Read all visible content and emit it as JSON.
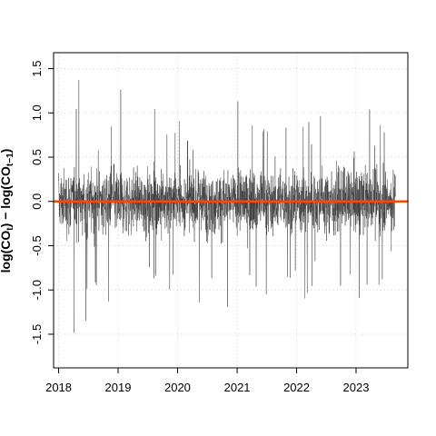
{
  "chart_data": {
    "type": "line",
    "title": "",
    "xlabel": "",
    "ylabel": {
      "prefix_1": "log(CO",
      "sub_1": "t",
      "mid": ") − log(CO",
      "sub_2": "t−1",
      "suffix": ")"
    },
    "x_range": [
      "2017-12-01",
      "2023-11-15"
    ],
    "ylim": [
      -1.88,
      1.68
    ],
    "grid": true,
    "x_ticks": [
      {
        "label": "2018",
        "date": "2018-01-01"
      },
      {
        "label": "2019",
        "date": "2019-01-01"
      },
      {
        "label": "2020",
        "date": "2020-01-01"
      },
      {
        "label": "2021",
        "date": "2021-01-01"
      },
      {
        "label": "2022",
        "date": "2022-01-01"
      },
      {
        "label": "2023",
        "date": "2023-01-01"
      }
    ],
    "y_ticks": [
      -1.5,
      -1.0,
      -0.5,
      0.0,
      0.5,
      1.0,
      1.5
    ],
    "y_tick_labels": [
      "-1.5",
      "-1.0",
      "-0.5",
      "0.0",
      "0.5",
      "1.0",
      "1.5"
    ],
    "series": [
      {
        "type": "line",
        "color": "#3c3c3c",
        "x_start": "2018-01-01",
        "x_end": "2023-09-01",
        "envelope_dates": [
          "2018-01-01",
          "2018-02-15",
          "2018-04-01",
          "2018-05-15",
          "2018-07-01",
          "2018-08-15",
          "2018-10-01",
          "2018-11-15",
          "2019-01-01",
          "2019-02-15",
          "2019-04-01",
          "2019-05-15",
          "2019-07-01",
          "2019-08-15",
          "2019-10-01",
          "2019-11-15",
          "2020-01-01",
          "2020-02-15",
          "2020-04-01",
          "2020-05-15",
          "2020-07-01",
          "2020-08-15",
          "2020-10-01",
          "2020-11-15",
          "2021-01-01",
          "2021-02-15",
          "2021-04-01",
          "2021-05-15",
          "2021-07-01",
          "2021-08-15",
          "2021-10-01",
          "2021-11-15",
          "2022-01-01",
          "2022-02-15",
          "2022-04-01",
          "2022-05-15",
          "2022-07-01",
          "2022-08-15",
          "2022-10-01",
          "2022-11-15",
          "2023-01-01",
          "2023-02-15",
          "2023-04-01",
          "2023-05-15",
          "2023-07-01",
          "2023-09-01"
        ],
        "envelope_high": [
          1.0,
          1.4,
          1.2,
          1.5,
          1.0,
          0.9,
          1.0,
          1.2,
          1.3,
          1.4,
          1.5,
          1.0,
          0.9,
          1.2,
          1.3,
          1.1,
          1.3,
          1.0,
          0.8,
          1.0,
          1.1,
          1.3,
          1.2,
          1.3,
          1.2,
          1.2,
          1.0,
          1.0,
          1.3,
          1.3,
          1.0,
          1.2,
          1.1,
          1.0,
          0.9,
          1.2,
          1.0,
          1.3,
          1.1,
          1.2,
          1.0,
          1.5,
          1.1,
          1.0,
          0.8,
          0.3
        ],
        "envelope_low": [
          -1.1,
          -1.4,
          -1.7,
          -1.5,
          -1.3,
          -1.0,
          -1.1,
          -1.3,
          -1.4,
          -1.6,
          -1.4,
          -1.1,
          -1.0,
          -1.2,
          -1.4,
          -1.3,
          -1.3,
          -1.4,
          -1.5,
          -1.2,
          -1.1,
          -1.2,
          -1.2,
          -1.4,
          -1.3,
          -1.5,
          -1.1,
          -1.0,
          -1.2,
          -1.4,
          -1.1,
          -1.3,
          -1.2,
          -1.2,
          -1.0,
          -1.2,
          -1.1,
          -1.3,
          -1.1,
          -1.2,
          -1.0,
          -1.6,
          -1.1,
          -1.2,
          -0.9,
          -0.4
        ],
        "typical_band": 0.45
      },
      {
        "type": "hline",
        "color": "#ff4500",
        "y": 0.0
      }
    ]
  }
}
